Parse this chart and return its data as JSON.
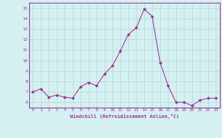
{
  "x": [
    0,
    1,
    2,
    3,
    4,
    5,
    6,
    7,
    8,
    9,
    10,
    11,
    12,
    13,
    14,
    15,
    16,
    17,
    18,
    19,
    20,
    21,
    22,
    23
  ],
  "y": [
    7.0,
    7.3,
    6.5,
    6.7,
    6.5,
    6.4,
    7.5,
    7.9,
    7.6,
    8.7,
    9.5,
    10.9,
    12.5,
    13.1,
    14.9,
    14.2,
    9.8,
    7.6,
    6.0,
    6.0,
    5.7,
    6.2,
    6.4,
    6.4
  ],
  "line_color": "#993399",
  "marker": "D",
  "marker_size": 2,
  "bg_color": "#d5f0f0",
  "grid_color": "#bbdddd",
  "xlabel": "Windchill (Refroidissement éolien,°C)",
  "tick_color": "#993399",
  "ylim": [
    5.5,
    15.5
  ],
  "yticks": [
    6,
    7,
    8,
    9,
    10,
    11,
    12,
    13,
    14,
    15
  ],
  "xlim": [
    -0.5,
    23.5
  ],
  "xticks": [
    0,
    1,
    2,
    3,
    4,
    5,
    6,
    7,
    8,
    9,
    10,
    11,
    12,
    13,
    14,
    15,
    16,
    17,
    18,
    19,
    20,
    21,
    22,
    23
  ]
}
